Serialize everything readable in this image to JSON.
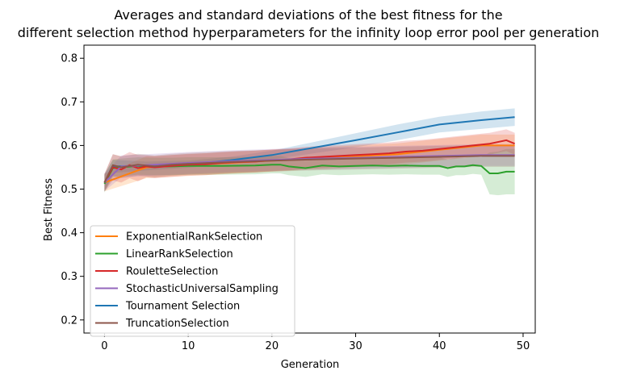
{
  "chart_data": {
    "type": "line",
    "title_lines": [
      "Averages and standard deviations of the best fitness for the",
      "different selection method hyperparameters for the infinity loop error pool per generation"
    ],
    "xlabel": "Generation",
    "ylabel": "Best Fitness",
    "xlim": [
      -2.45,
      51.45
    ],
    "ylim": [
      0.17,
      0.83
    ],
    "xticks": [
      0,
      10,
      20,
      30,
      40,
      50
    ],
    "yticks": [
      0.2,
      0.3,
      0.4,
      0.5,
      0.6,
      0.7,
      0.8
    ],
    "grid": false,
    "legend_position": "lower-left",
    "shaded_band": "mean ± standard deviation",
    "series": [
      {
        "name": "ExponentialRankSelection",
        "color": "#ff7f0e",
        "x": [
          0,
          5,
          10,
          15,
          20,
          25,
          30,
          35,
          40,
          45,
          49
        ],
        "mean": [
          0.515,
          0.55,
          0.555,
          0.56,
          0.565,
          0.57,
          0.575,
          0.58,
          0.59,
          0.6,
          0.6
        ],
        "std": [
          0.02,
          0.025,
          0.025,
          0.025,
          0.025,
          0.025,
          0.025,
          0.025,
          0.025,
          0.025,
          0.025
        ]
      },
      {
        "name": "LinearRankSelection",
        "color": "#2ca02c",
        "x": [
          0,
          1,
          2,
          4,
          6,
          8,
          10,
          14,
          18,
          20,
          21,
          22,
          24,
          26,
          28,
          30,
          32,
          34,
          36,
          38,
          40,
          41,
          42,
          43,
          44,
          45,
          46,
          47,
          48,
          49
        ],
        "mean": [
          0.512,
          0.548,
          0.55,
          0.553,
          0.552,
          0.552,
          0.553,
          0.553,
          0.554,
          0.556,
          0.556,
          0.552,
          0.548,
          0.554,
          0.552,
          0.553,
          0.554,
          0.553,
          0.554,
          0.553,
          0.553,
          0.548,
          0.552,
          0.552,
          0.555,
          0.553,
          0.536,
          0.536,
          0.54,
          0.54
        ],
        "std": [
          0.02,
          0.02,
          0.02,
          0.02,
          0.02,
          0.02,
          0.02,
          0.02,
          0.02,
          0.02,
          0.02,
          0.02,
          0.02,
          0.02,
          0.02,
          0.02,
          0.02,
          0.02,
          0.02,
          0.02,
          0.02,
          0.02,
          0.02,
          0.02,
          0.02,
          0.02,
          0.048,
          0.05,
          0.052,
          0.052
        ]
      },
      {
        "name": "RouletteSelection",
        "color": "#d62728",
        "x": [
          0,
          1,
          2,
          3,
          4,
          5,
          6,
          8,
          10,
          12,
          14,
          16,
          18,
          20,
          22,
          24,
          26,
          28,
          30,
          32,
          34,
          36,
          38,
          40,
          42,
          44,
          46,
          48,
          49
        ],
        "mean": [
          0.515,
          0.55,
          0.545,
          0.555,
          0.548,
          0.552,
          0.55,
          0.553,
          0.556,
          0.557,
          0.56,
          0.562,
          0.563,
          0.566,
          0.568,
          0.572,
          0.574,
          0.576,
          0.578,
          0.58,
          0.582,
          0.586,
          0.588,
          0.592,
          0.596,
          0.6,
          0.604,
          0.612,
          0.604
        ],
        "std": [
          0.02,
          0.03,
          0.03,
          0.03,
          0.03,
          0.025,
          0.025,
          0.025,
          0.025,
          0.025,
          0.025,
          0.025,
          0.025,
          0.025,
          0.025,
          0.025,
          0.025,
          0.025,
          0.025,
          0.025,
          0.025,
          0.025,
          0.025,
          0.025,
          0.025,
          0.025,
          0.025,
          0.025,
          0.025
        ]
      },
      {
        "name": "StochasticUniversalSampling",
        "color": "#9467bd",
        "x": [
          0,
          2,
          5,
          10,
          15,
          20,
          25,
          30,
          35,
          40,
          45,
          49
        ],
        "mean": [
          0.515,
          0.552,
          0.555,
          0.56,
          0.564,
          0.567,
          0.57,
          0.572,
          0.574,
          0.576,
          0.578,
          0.578
        ],
        "std": [
          0.02,
          0.025,
          0.025,
          0.025,
          0.025,
          0.025,
          0.025,
          0.025,
          0.025,
          0.025,
          0.025,
          0.025
        ]
      },
      {
        "name": "Tournament Selection",
        "color": "#1f77b4",
        "x": [
          0,
          1,
          5,
          10,
          15,
          20,
          25,
          30,
          35,
          40,
          45,
          49
        ],
        "mean": [
          0.515,
          0.552,
          0.553,
          0.557,
          0.566,
          0.578,
          0.595,
          0.612,
          0.63,
          0.648,
          0.658,
          0.665
        ],
        "std": [
          0.02,
          0.015,
          0.01,
          0.008,
          0.008,
          0.01,
          0.013,
          0.016,
          0.018,
          0.018,
          0.02,
          0.02
        ]
      },
      {
        "name": "TruncationSelection",
        "color": "#8c564b",
        "x": [
          0,
          1,
          2,
          4,
          6,
          8,
          10,
          15,
          20,
          25,
          30,
          35,
          40,
          45,
          49
        ],
        "mean": [
          0.515,
          0.555,
          0.55,
          0.556,
          0.552,
          0.556,
          0.558,
          0.562,
          0.565,
          0.568,
          0.57,
          0.572,
          0.574,
          0.576,
          0.576
        ],
        "std": [
          0.02,
          0.025,
          0.025,
          0.025,
          0.025,
          0.025,
          0.025,
          0.025,
          0.025,
          0.025,
          0.025,
          0.025,
          0.025,
          0.025,
          0.025
        ]
      }
    ],
    "draw_order": [
      4,
      0,
      1,
      2,
      3,
      5
    ]
  }
}
